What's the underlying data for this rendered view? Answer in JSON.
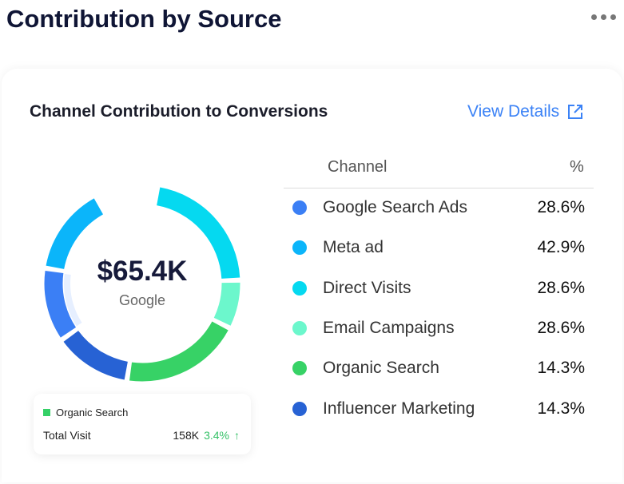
{
  "page_title": "Contribution by Source",
  "card": {
    "title": "Channel Contribution to Conversions",
    "view_details": "View Details"
  },
  "center": {
    "value": "$65.4K",
    "label": "Google"
  },
  "tooltip": {
    "channel": "Organic Search",
    "metric": "Total Visit",
    "value": "158K",
    "change": "3.4%"
  },
  "chart_data": {
    "type": "pie",
    "headers": {
      "channel": "Channel",
      "pct": "%"
    },
    "rows": [
      {
        "name": "Google Search Ads",
        "pct": "28.6%",
        "color": "#3b7ff5",
        "arc_deg": 44
      },
      {
        "name": "Meta ad",
        "pct": "42.9%",
        "color": "#0bb5fa",
        "arc_deg": 53
      },
      {
        "name": "Direct Visits",
        "pct": "28.6%",
        "color": "#05d9f0",
        "arc_deg": 79
      },
      {
        "name": "Email Campaigns",
        "pct": "28.6%",
        "color": "#6cf7cc",
        "arc_deg": 29
      },
      {
        "name": "Organic Search",
        "pct": "14.3%",
        "color": "#37d266",
        "arc_deg": 72
      },
      {
        "name": "Influencer Marketing",
        "pct": "14.3%",
        "color": "#2762d4",
        "arc_deg": 46
      }
    ],
    "start_deg": 9
  }
}
